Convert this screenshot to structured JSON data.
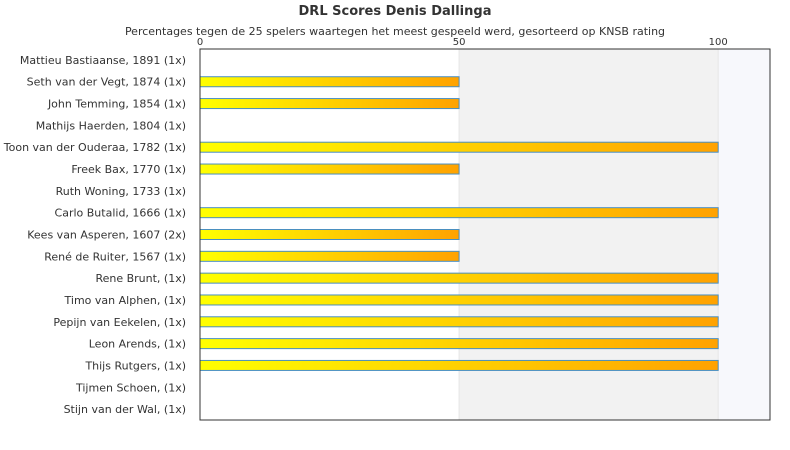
{
  "chart_data": {
    "type": "bar",
    "orientation": "horizontal",
    "title": "DRL Scores Denis Dallinga",
    "subtitle": "Percentages tegen de 25 spelers waartegen het meest gespeeld werd, gesorteerd op KNSB rating",
    "categories": [
      "Mattieu Bastiaanse, 1891 (1x)",
      "Seth van der Vegt, 1874 (1x)",
      "John Temming, 1854 (1x)",
      "Mathijs Haerden, 1804 (1x)",
      "Toon van der Ouderaa, 1782 (1x)",
      "Freek Bax, 1770 (1x)",
      "Ruth Woning, 1733 (1x)",
      "Carlo Butalid, 1666 (1x)",
      "Kees van Asperen, 1607 (2x)",
      "René de Ruiter, 1567 (1x)",
      "Rene Brunt,  (1x)",
      "Timo van Alphen,  (1x)",
      "Pepijn van Eekelen,  (1x)",
      "Leon Arends,  (1x)",
      "Thijs Rutgers,  (1x)",
      "Tijmen Schoen,  (1x)",
      "Stijn van der Wal,  (1x)"
    ],
    "values": [
      0,
      50,
      50,
      0,
      100,
      50,
      0,
      100,
      50,
      50,
      100,
      100,
      100,
      100,
      100,
      0,
      0
    ],
    "xlim": [
      0,
      110
    ],
    "xticks": [
      0,
      50,
      100
    ],
    "xtick_labels": [
      "0",
      "50",
      "100"
    ],
    "xaxis_position": "top",
    "grid": false,
    "legend": "none",
    "colors": {
      "bar_start": "#ffff00",
      "bar_end": "#ffa200",
      "bar_border": "#4a8fc0",
      "band_shade": "#f2f2f2",
      "band_light": "#f7f8fc",
      "frame": "#333333",
      "text": "#333333"
    }
  }
}
